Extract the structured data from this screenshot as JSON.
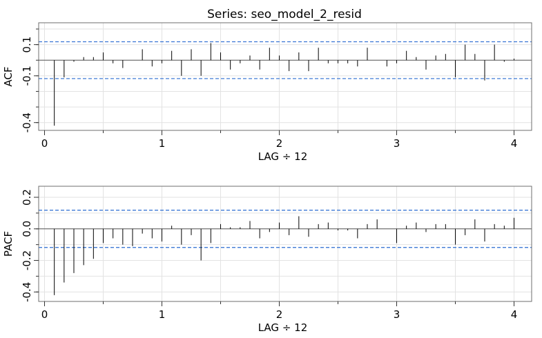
{
  "title": "Series:  seo_model_2_resid",
  "chart_data": [
    {
      "type": "bar",
      "name": "ACF",
      "title": "Series:  seo_model_2_resid",
      "xlabel": "LAG ÷ 12",
      "ylabel": "ACF",
      "xlim": [
        -0.05,
        4.15
      ],
      "ylim": [
        -0.45,
        0.24
      ],
      "xticks": [
        0,
        1,
        2,
        3,
        4
      ],
      "yticks": [
        -0.4,
        -0.1,
        0.1
      ],
      "ytick_labels": [
        "-0.4",
        "-0.1",
        "0.1"
      ],
      "ci": [
        0.118,
        -0.118
      ],
      "grid": true,
      "lags": [
        0.0833,
        0.1667,
        0.25,
        0.3333,
        0.4167,
        0.5,
        0.5833,
        0.6667,
        0.75,
        0.8333,
        0.9167,
        1.0,
        1.0833,
        1.1667,
        1.25,
        1.3333,
        1.4167,
        1.5,
        1.5833,
        1.6667,
        1.75,
        1.8333,
        1.9167,
        2.0,
        2.0833,
        2.1667,
        2.25,
        2.3333,
        2.4167,
        2.5,
        2.5833,
        2.6667,
        2.75,
        2.8333,
        2.9167,
        3.0,
        3.0833,
        3.1667,
        3.25,
        3.3333,
        3.4167,
        3.5,
        3.5833,
        3.6667,
        3.75,
        3.8333,
        3.9167,
        4.0
      ],
      "values": [
        -0.42,
        -0.11,
        -0.01,
        0.02,
        0.02,
        0.05,
        -0.02,
        -0.05,
        0.0,
        0.07,
        -0.04,
        -0.02,
        0.06,
        -0.1,
        0.07,
        -0.1,
        0.11,
        0.05,
        -0.06,
        -0.02,
        0.03,
        -0.06,
        0.08,
        0.03,
        -0.07,
        0.05,
        -0.07,
        0.08,
        -0.02,
        -0.02,
        -0.02,
        -0.04,
        0.08,
        0.0,
        -0.04,
        -0.02,
        0.06,
        0.02,
        -0.06,
        0.03,
        0.04,
        -0.11,
        0.1,
        0.04,
        -0.13,
        0.1,
        -0.01,
        0.01
      ]
    },
    {
      "type": "bar",
      "name": "PACF",
      "xlabel": "LAG ÷ 12",
      "ylabel": "PACF",
      "xlim": [
        -0.05,
        4.15
      ],
      "ylim": [
        -0.46,
        0.27
      ],
      "xticks": [
        0,
        1,
        2,
        3,
        4
      ],
      "yticks": [
        -0.4,
        -0.2,
        0.0,
        0.2
      ],
      "ytick_labels": [
        "-0.4",
        "-0.2",
        "0.0",
        "0.2"
      ],
      "ci": [
        0.118,
        -0.118
      ],
      "grid": true,
      "lags": [
        0.0833,
        0.1667,
        0.25,
        0.3333,
        0.4167,
        0.5,
        0.5833,
        0.6667,
        0.75,
        0.8333,
        0.9167,
        1.0,
        1.0833,
        1.1667,
        1.25,
        1.3333,
        1.4167,
        1.5,
        1.5833,
        1.6667,
        1.75,
        1.8333,
        1.9167,
        2.0,
        2.0833,
        2.1667,
        2.25,
        2.3333,
        2.4167,
        2.5,
        2.5833,
        2.6667,
        2.75,
        2.8333,
        2.9167,
        3.0,
        3.0833,
        3.1667,
        3.25,
        3.3333,
        3.4167,
        3.5,
        3.5833,
        3.6667,
        3.75,
        3.8333,
        3.9167,
        4.0
      ],
      "values": [
        -0.42,
        -0.34,
        -0.28,
        -0.23,
        -0.19,
        -0.09,
        -0.06,
        -0.1,
        -0.11,
        -0.03,
        -0.06,
        -0.08,
        0.02,
        -0.1,
        -0.04,
        -0.2,
        -0.09,
        0.03,
        0.01,
        0.01,
        0.05,
        -0.06,
        -0.02,
        0.04,
        -0.04,
        0.08,
        -0.05,
        0.03,
        0.04,
        -0.01,
        -0.01,
        -0.06,
        0.03,
        0.06,
        0.0,
        -0.09,
        0.02,
        0.04,
        -0.02,
        0.03,
        0.03,
        -0.1,
        -0.04,
        0.06,
        -0.08,
        0.03,
        0.02,
        0.07
      ]
    }
  ]
}
